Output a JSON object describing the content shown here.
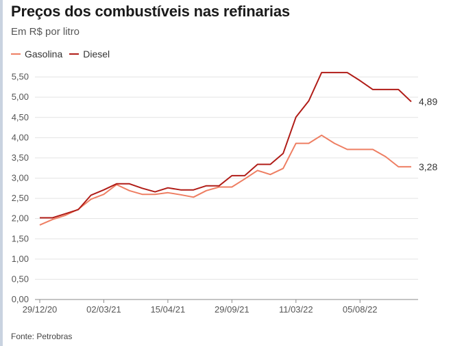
{
  "title": "Preços dos combustíveis nas refinarias",
  "subtitle": "Em R$ por litro",
  "source": "Fonte: Petrobras",
  "colors": {
    "gasolina": "#ee7e62",
    "diesel": "#b01c17",
    "grid": "#e3e3e3",
    "axis": "#888888"
  },
  "chart_data": {
    "type": "line",
    "title": "Preços dos combustíveis nas refinarias",
    "subtitle": "Em R$ por litro",
    "ylim": [
      0,
      6
    ],
    "y_ticks": [
      "0,00",
      "0,50",
      "1,00",
      "1,50",
      "2,00",
      "2,50",
      "3,00",
      "3,50",
      "4,00",
      "4,50",
      "5,00",
      "5,50"
    ],
    "x_ticks": [
      "29/12/20",
      "02/03/21",
      "15/04/21",
      "29/09/21",
      "11/03/22",
      "05/08/22"
    ],
    "grid": true,
    "legend": "top-left",
    "series": [
      {
        "name": "Gasolina",
        "values": [
          1.84,
          1.98,
          2.08,
          2.23,
          2.48,
          2.6,
          2.84,
          2.69,
          2.6,
          2.6,
          2.64,
          2.59,
          2.53,
          2.69,
          2.78,
          2.78,
          2.98,
          3.19,
          3.09,
          3.24,
          3.86,
          3.86,
          4.06,
          3.86,
          3.71,
          3.71,
          3.71,
          3.53,
          3.28,
          3.28
        ],
        "end_label": "3,28"
      },
      {
        "name": "Diesel",
        "values": [
          2.02,
          2.02,
          2.12,
          2.22,
          2.58,
          2.71,
          2.86,
          2.86,
          2.75,
          2.66,
          2.76,
          2.71,
          2.71,
          2.81,
          2.81,
          3.06,
          3.06,
          3.34,
          3.34,
          3.61,
          4.51,
          4.91,
          5.61,
          5.61,
          5.61,
          5.41,
          5.19,
          5.19,
          5.19,
          4.89
        ],
        "end_label": "4,89"
      }
    ]
  }
}
